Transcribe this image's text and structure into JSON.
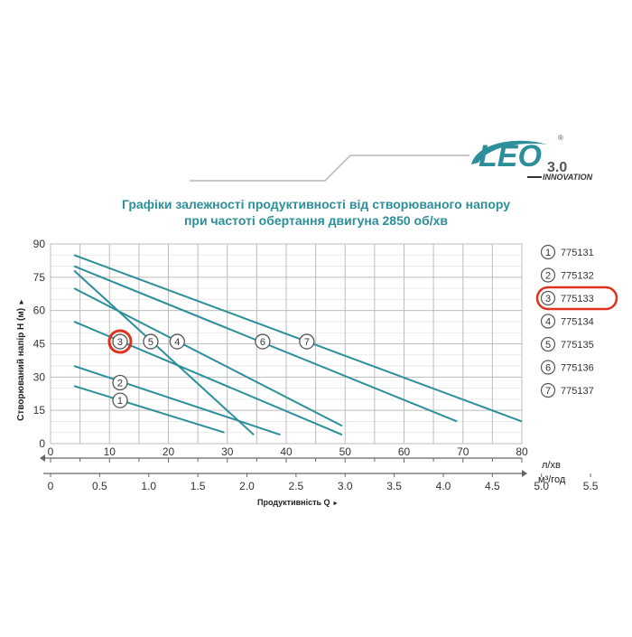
{
  "logo": {
    "brand": "LEO",
    "version": "3.0",
    "tagline": "INNOVATION",
    "registered": "®",
    "color": "#2c8f9a"
  },
  "chart_data": {
    "type": "line",
    "title_line1": "Графіки залежності продуктивності від створюваного напору",
    "title_line2": "при частоті обертання двигуна 2850 об/хв",
    "ylabel": "Створюваний напір H (м)",
    "ylabel_arrow": "►",
    "xlabel": "Продуктивність  Q",
    "xlabel_arrow": "►",
    "x_unit_top": "л/хв",
    "x_unit_bottom": "м³/год",
    "xlim": [
      0,
      80
    ],
    "ylim": [
      0,
      90
    ],
    "x_ticks": [
      0,
      10,
      20,
      30,
      40,
      50,
      60,
      70,
      80
    ],
    "x_ticks_m3h": [
      "0",
      "0.5",
      "1.0",
      "1.5",
      "2.0",
      "2.5",
      "3.0",
      "3.5",
      "4.0",
      "4.5",
      "5.0",
      "5.5"
    ],
    "y_ticks": [
      0,
      15,
      30,
      45,
      60,
      75,
      90
    ],
    "grid": true,
    "line_color": "#2c8f9a",
    "highlight_color": "#e0301e",
    "series": [
      {
        "name": "775131",
        "num": "1",
        "x": [
          4,
          29.5
        ],
        "y": [
          26,
          5
        ],
        "label_at": [
          11.8,
          19.5
        ]
      },
      {
        "name": "775132",
        "num": "2",
        "x": [
          4,
          39
        ],
        "y": [
          35,
          4
        ],
        "label_at": [
          11.8,
          27.5
        ]
      },
      {
        "name": "775133",
        "num": "3",
        "x": [
          4,
          34.5
        ],
        "y": [
          78,
          4
        ],
        "label_at": [
          11.8,
          46
        ],
        "highlight": true
      },
      {
        "name": "775134",
        "num": "4",
        "x": [
          4,
          49.5
        ],
        "y": [
          70,
          8
        ],
        "label_at": [
          21.5,
          46
        ]
      },
      {
        "name": "775135",
        "num": "5",
        "x": [
          4,
          49.5
        ],
        "y": [
          55,
          4
        ],
        "label_at": [
          17,
          46
        ]
      },
      {
        "name": "775136",
        "num": "6",
        "x": [
          4,
          69
        ],
        "y": [
          80,
          10
        ],
        "label_at": [
          36,
          46
        ]
      },
      {
        "name": "775137",
        "num": "7",
        "x": [
          4,
          80
        ],
        "y": [
          85,
          10
        ],
        "label_at": [
          43.5,
          46
        ]
      }
    ],
    "legend_placement": "right"
  }
}
